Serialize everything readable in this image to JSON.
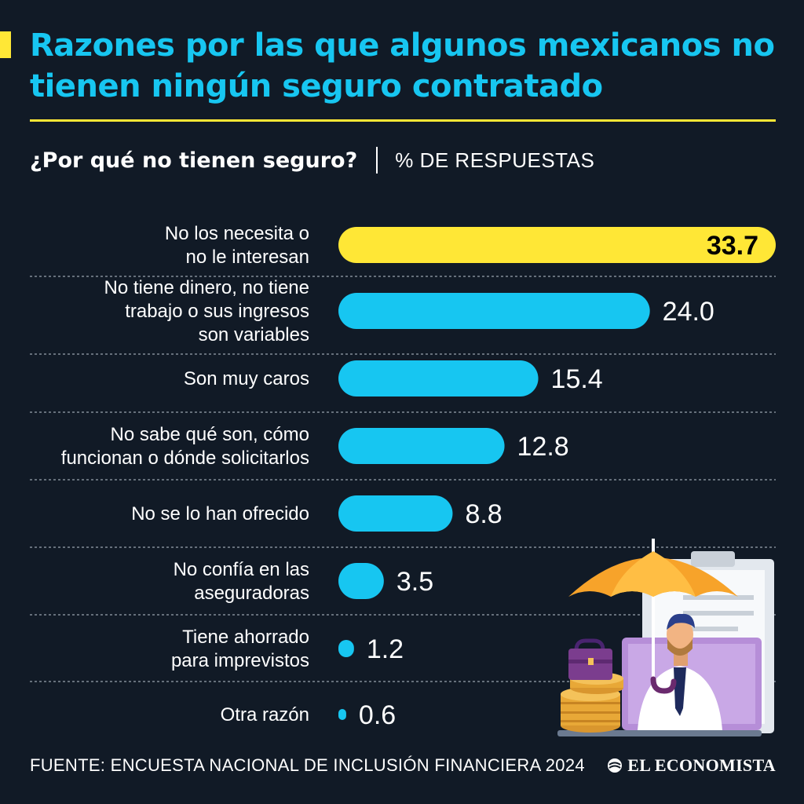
{
  "header": {
    "title": "Razones por las que algunos mexicanos no tienen ningún seguro contratado"
  },
  "subtitle": {
    "question": "¿Por qué no tienen seguro?",
    "unit": "% DE RESPUESTAS"
  },
  "colors": {
    "background": "#111a26",
    "highlight_bar": "#ffe736",
    "bar": "#17c6f1",
    "title": "#17c6f1",
    "text": "#ffffff"
  },
  "chart_data": {
    "type": "bar",
    "orientation": "horizontal",
    "title": "¿Por qué no tienen seguro?",
    "xlabel": "% DE RESPUESTAS",
    "ylabel": "",
    "xlim": [
      0,
      33.7
    ],
    "grid": false,
    "categories": [
      [
        "No los necesita o",
        "no le interesan"
      ],
      [
        "No tiene dinero, no tiene",
        "trabajo o sus ingresos",
        "son variables"
      ],
      [
        "Son muy caros"
      ],
      [
        "No sabe qué son, cómo",
        "funcionan o dónde solicitarlos"
      ],
      [
        "No se lo han ofrecido"
      ],
      [
        "No confía en las",
        "aseguradoras"
      ],
      [
        "Tiene ahorrado",
        "para imprevistos"
      ],
      [
        "Otra razón"
      ]
    ],
    "values": [
      33.7,
      24.0,
      15.4,
      12.8,
      8.8,
      3.5,
      1.2,
      0.6
    ],
    "value_labels": [
      "33.7",
      "24.0",
      "15.4",
      "12.8",
      "8.8",
      "3.5",
      "1.2",
      "0.6"
    ],
    "highlight_index": 0
  },
  "footer": {
    "source": "FUENTE: ENCUESTA NACIONAL DE INCLUSIÓN FINANCIERA 2024",
    "brand": "EL ECONOMISTA"
  },
  "illustration": {
    "icon": "umbrella-person-insurance-icon"
  }
}
